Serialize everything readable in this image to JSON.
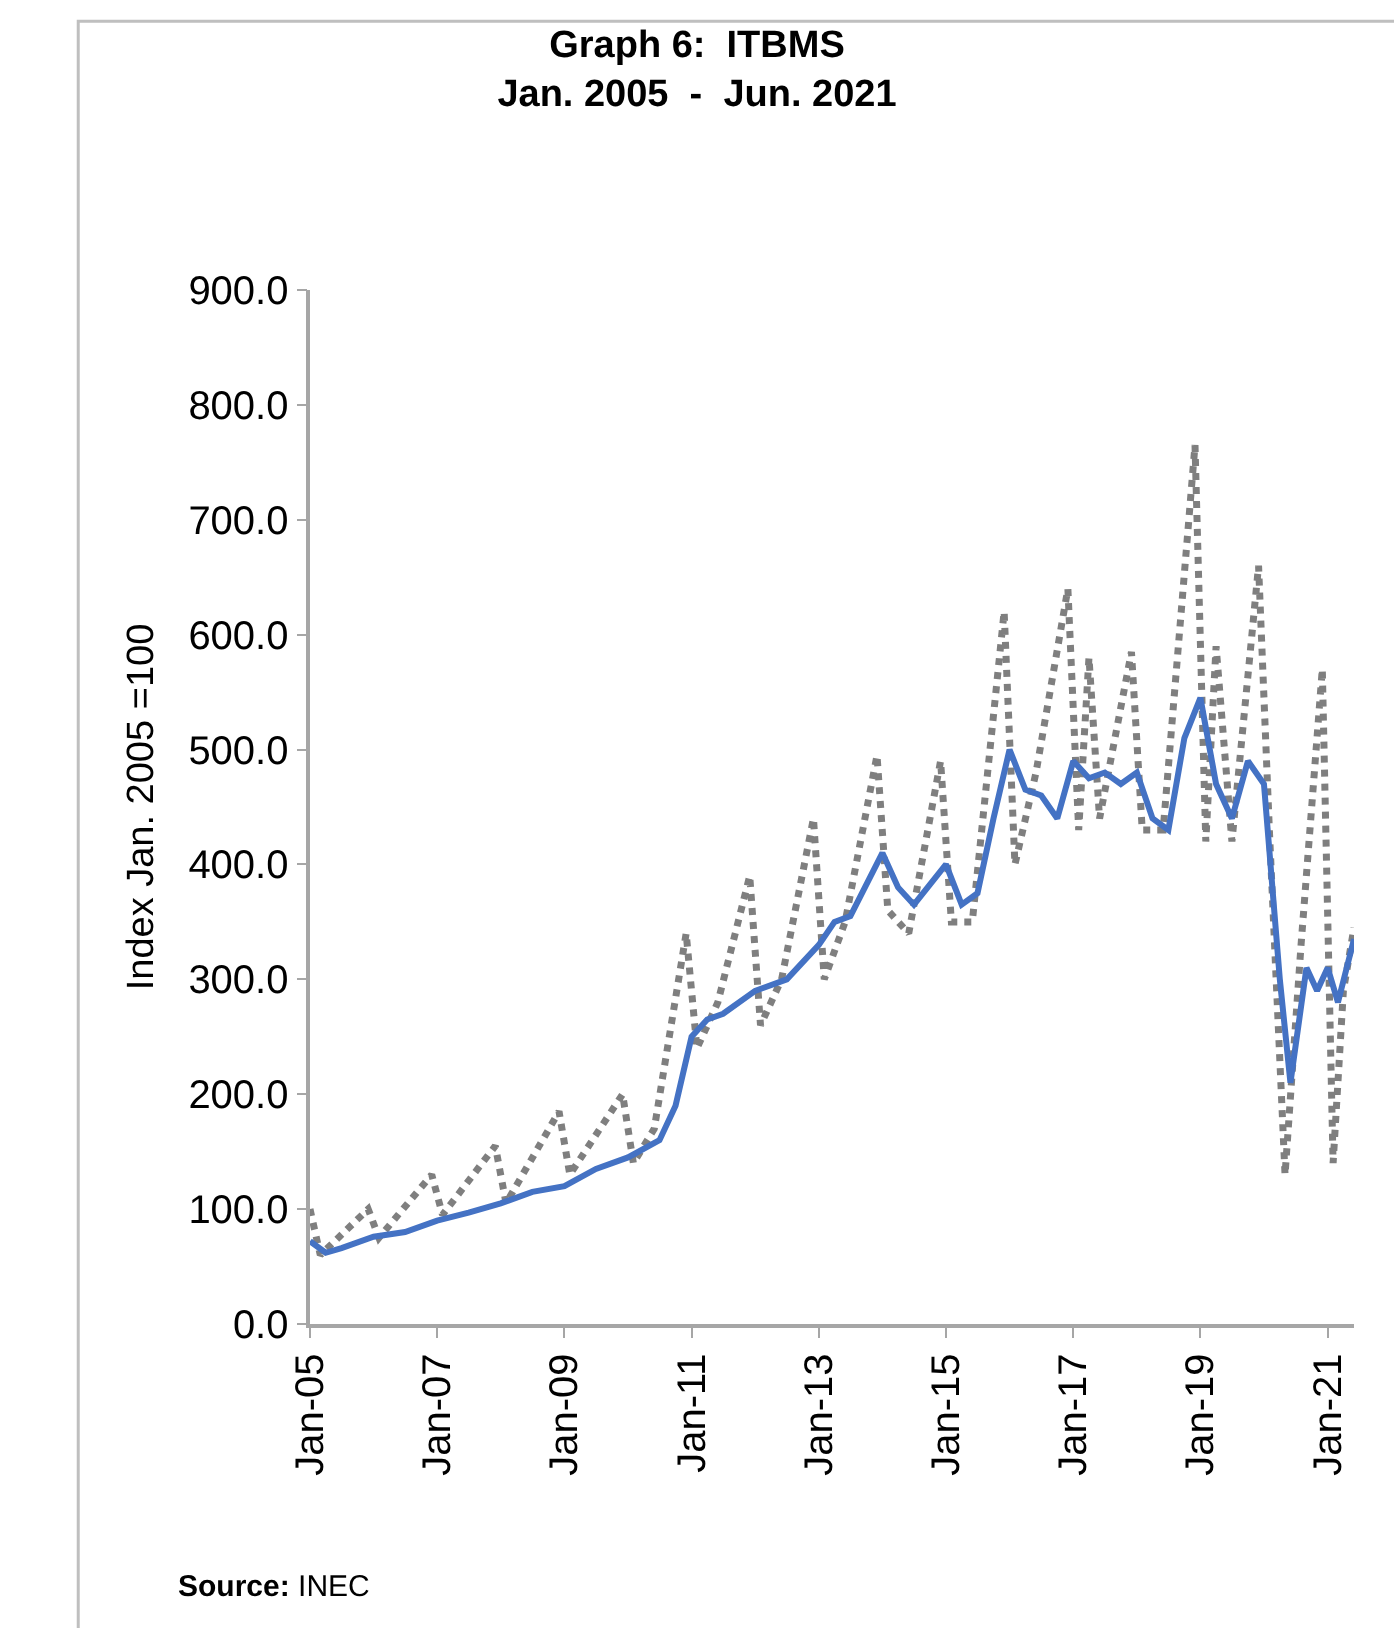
{
  "chart_data": {
    "type": "line",
    "title": "Graph 6:  ITBMS\nJan. 2005  -  Jun. 2021",
    "ylabel": "Index Jan. 2005 =100",
    "annotations": [
      "Source: INEC"
    ],
    "xlim": [
      "2005-01",
      "2021-06"
    ],
    "xticks": [
      {
        "value": "2005-01",
        "label": "Jan-05"
      },
      {
        "value": "2007-01",
        "label": "Jan-07"
      },
      {
        "value": "2009-01",
        "label": "Jan-09"
      },
      {
        "value": "2011-01",
        "label": "Jan-11"
      },
      {
        "value": "2013-01",
        "label": "Jan-13"
      },
      {
        "value": "2015-01",
        "label": "Jan-15"
      },
      {
        "value": "2017-01",
        "label": "Jan-17"
      },
      {
        "value": "2019-01",
        "label": "Jan-19"
      },
      {
        "value": "2021-01",
        "label": "Jan-21"
      }
    ],
    "ylim": [
      0,
      900
    ],
    "yticks": [
      {
        "value": 0,
        "label": "0.0"
      },
      {
        "value": 100,
        "label": "100.0"
      },
      {
        "value": 200,
        "label": "200.0"
      },
      {
        "value": 300,
        "label": "300.0"
      },
      {
        "value": 400,
        "label": "400.0"
      },
      {
        "value": 500,
        "label": "500.0"
      },
      {
        "value": 600,
        "label": "600.0"
      },
      {
        "value": 700,
        "label": "700.0"
      },
      {
        "value": 800,
        "label": "800.0"
      },
      {
        "value": 900,
        "label": "900.0"
      }
    ],
    "marker": "none",
    "series": [
      {
        "color": "#7f7f7f",
        "line_style": "dotted",
        "x": [
          "2005-01",
          "2005-03",
          "2005-12",
          "2006-02",
          "2006-12",
          "2007-02",
          "2007-12",
          "2008-02",
          "2008-12",
          "2009-02",
          "2009-12",
          "2010-02",
          "2010-06",
          "2010-12",
          "2011-02",
          "2011-06",
          "2011-12",
          "2012-02",
          "2012-06",
          "2012-12",
          "2013-02",
          "2013-06",
          "2013-12",
          "2014-02",
          "2014-06",
          "2014-12",
          "2015-02",
          "2015-06",
          "2015-12",
          "2016-02",
          "2016-06",
          "2016-12",
          "2017-02",
          "2017-04",
          "2017-06",
          "2017-12",
          "2018-02",
          "2018-06",
          "2018-12",
          "2019-02",
          "2019-04",
          "2019-07",
          "2019-12",
          "2020-02",
          "2020-05",
          "2020-08",
          "2020-12",
          "2021-02",
          "2021-04",
          "2021-06"
        ],
        "values": [
          100,
          60,
          100,
          75,
          130,
          95,
          155,
          105,
          185,
          130,
          200,
          140,
          170,
          340,
          240,
          280,
          390,
          260,
          300,
          440,
          300,
          350,
          495,
          360,
          340,
          490,
          350,
          350,
          620,
          400,
          480,
          640,
          430,
          580,
          440,
          585,
          430,
          430,
          765,
          420,
          590,
          420,
          660,
          430,
          130,
          330,
          570,
          140,
          290,
          345
        ]
      },
      {
        "color": "#4472c4",
        "line_style": "solid",
        "x": [
          "2005-01",
          "2005-04",
          "2005-07",
          "2006-01",
          "2006-07",
          "2007-01",
          "2007-07",
          "2008-01",
          "2008-07",
          "2009-01",
          "2009-07",
          "2010-01",
          "2010-07",
          "2010-10",
          "2011-01",
          "2011-04",
          "2011-07",
          "2012-01",
          "2012-07",
          "2013-01",
          "2013-04",
          "2013-07",
          "2014-01",
          "2014-04",
          "2014-07",
          "2015-01",
          "2015-04",
          "2015-07",
          "2015-10",
          "2016-01",
          "2016-04",
          "2016-07",
          "2016-10",
          "2017-01",
          "2017-04",
          "2017-07",
          "2017-10",
          "2018-01",
          "2018-04",
          "2018-07",
          "2018-10",
          "2019-01",
          "2019-04",
          "2019-07",
          "2019-10",
          "2020-01",
          "2020-04",
          "2020-06",
          "2020-09",
          "2020-11",
          "2021-01",
          "2021-03",
          "2021-06"
        ],
        "values": [
          72,
          62,
          66,
          76,
          80,
          90,
          97,
          105,
          115,
          120,
          135,
          145,
          160,
          190,
          250,
          265,
          270,
          290,
          300,
          330,
          350,
          355,
          410,
          380,
          365,
          400,
          365,
          375,
          440,
          500,
          465,
          460,
          440,
          490,
          475,
          480,
          470,
          480,
          440,
          430,
          510,
          545,
          470,
          440,
          490,
          470,
          300,
          210,
          310,
          290,
          310,
          280,
          335
        ]
      }
    ]
  }
}
